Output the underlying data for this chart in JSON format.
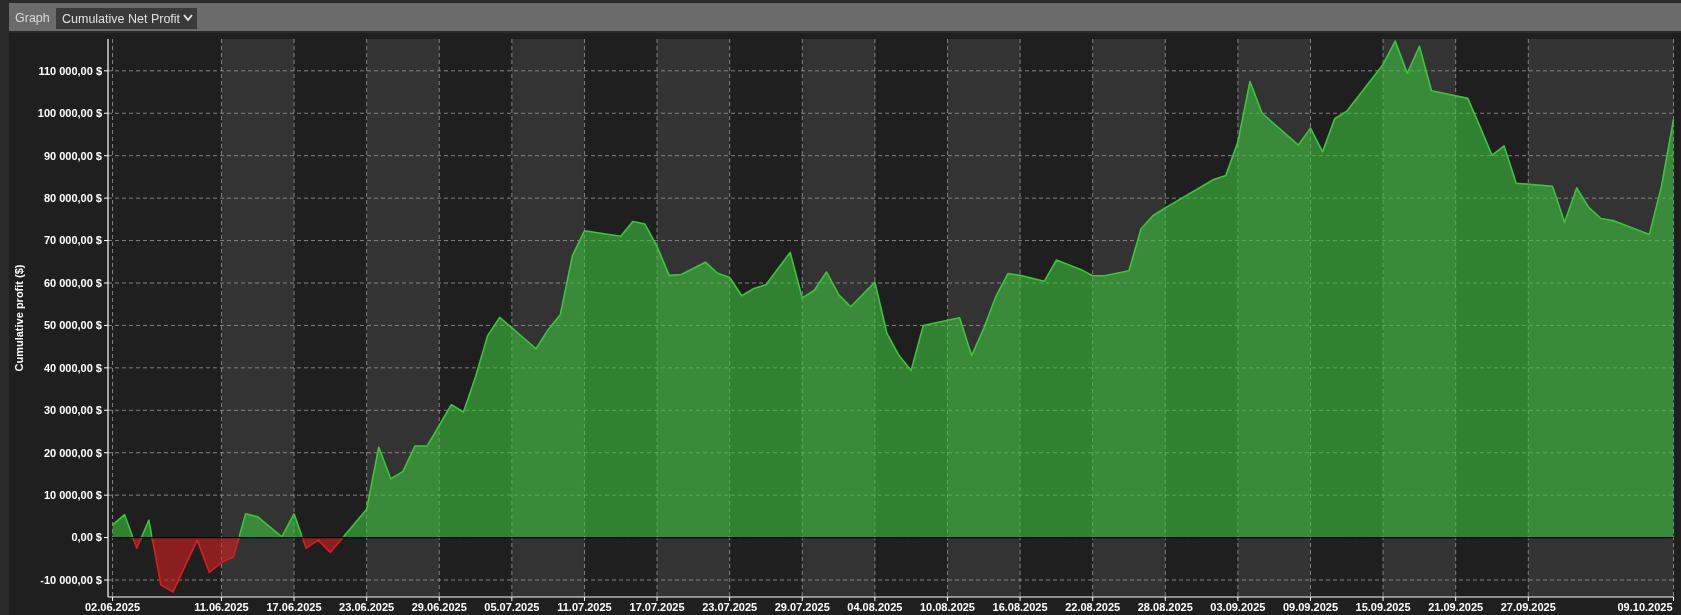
{
  "chart_data": {
    "type": "area",
    "title": "Cumulative Net Profit",
    "annotations": [
      "Graph"
    ],
    "ylabel": "Cumulative profit ($)",
    "x": [
      "2025-06-02",
      "2025-06-03",
      "2025-06-04",
      "2025-06-05",
      "2025-06-06",
      "2025-06-07",
      "2025-06-09",
      "2025-06-10",
      "2025-06-11",
      "2025-06-12",
      "2025-06-13",
      "2025-06-14",
      "2025-06-16",
      "2025-06-17",
      "2025-06-18",
      "2025-06-19",
      "2025-06-20",
      "2025-06-23",
      "2025-06-24",
      "2025-06-25",
      "2025-06-26",
      "2025-06-27",
      "2025-06-28",
      "2025-06-30",
      "2025-07-01",
      "2025-07-02",
      "2025-07-03",
      "2025-07-04",
      "2025-07-07",
      "2025-07-08",
      "2025-07-09",
      "2025-07-10",
      "2025-07-11",
      "2025-07-14",
      "2025-07-15",
      "2025-07-16",
      "2025-07-17",
      "2025-07-18",
      "2025-07-19",
      "2025-07-21",
      "2025-07-22",
      "2025-07-23",
      "2025-07-24",
      "2025-07-25",
      "2025-07-26",
      "2025-07-28",
      "2025-07-29",
      "2025-07-30",
      "2025-07-31",
      "2025-08-01",
      "2025-08-02",
      "2025-08-04",
      "2025-08-05",
      "2025-08-06",
      "2025-08-07",
      "2025-08-08",
      "2025-08-11",
      "2025-08-12",
      "2025-08-13",
      "2025-08-14",
      "2025-08-15",
      "2025-08-16",
      "2025-08-18",
      "2025-08-19",
      "2025-08-21",
      "2025-08-22",
      "2025-08-23",
      "2025-08-25",
      "2025-08-26",
      "2025-08-27",
      "2025-08-28",
      "2025-09-01",
      "2025-09-02",
      "2025-09-03",
      "2025-09-04",
      "2025-09-05",
      "2025-09-08",
      "2025-09-09",
      "2025-09-10",
      "2025-09-11",
      "2025-09-12",
      "2025-09-15",
      "2025-09-16",
      "2025-09-17",
      "2025-09-18",
      "2025-09-19",
      "2025-09-22",
      "2025-09-23",
      "2025-09-24",
      "2025-09-25",
      "2025-09-26",
      "2025-09-29",
      "2025-09-30",
      "2025-10-01",
      "2025-10-02",
      "2025-10-03",
      "2025-10-04",
      "2025-10-07",
      "2025-10-08",
      "2025-10-09"
    ],
    "series": [
      {
        "colors": [
          "#3cc43c",
          "#3cc43c",
          "#d42020",
          "#3cc43c",
          "#d42020",
          "#d42020",
          "#d42020",
          "#d42020",
          "#d42020",
          "#d42020",
          "#3cc43c",
          "#3cc43c",
          "#3cc43c",
          "#3cc43c",
          "#d42020",
          "#d42020",
          "#d42020",
          "#3cc43c",
          "#3cc43c",
          "#3cc43c",
          "#3cc43c",
          "#3cc43c",
          "#3cc43c",
          "#3cc43c",
          "#3cc43c",
          "#3cc43c",
          "#3cc43c",
          "#3cc43c",
          "#3cc43c",
          "#3cc43c",
          "#3cc43c",
          "#3cc43c",
          "#3cc43c",
          "#3cc43c",
          "#3cc43c",
          "#3cc43c",
          "#3cc43c",
          "#3cc43c",
          "#3cc43c",
          "#3cc43c",
          "#3cc43c",
          "#3cc43c",
          "#3cc43c",
          "#3cc43c",
          "#3cc43c",
          "#3cc43c",
          "#3cc43c",
          "#3cc43c",
          "#3cc43c",
          "#3cc43c",
          "#3cc43c",
          "#3cc43c",
          "#3cc43c",
          "#3cc43c",
          "#3cc43c",
          "#3cc43c",
          "#3cc43c",
          "#3cc43c",
          "#3cc43c",
          "#3cc43c",
          "#3cc43c",
          "#3cc43c",
          "#3cc43c",
          "#3cc43c",
          "#3cc43c",
          "#3cc43c",
          "#3cc43c",
          "#3cc43c",
          "#3cc43c",
          "#3cc43c",
          "#3cc43c",
          "#3cc43c",
          "#3cc43c",
          "#3cc43c",
          "#3cc43c",
          "#3cc43c",
          "#3cc43c",
          "#3cc43c",
          "#3cc43c",
          "#3cc43c",
          "#3cc43c",
          "#3cc43c",
          "#3cc43c",
          "#3cc43c",
          "#3cc43c",
          "#3cc43c",
          "#3cc43c",
          "#3cc43c",
          "#3cc43c",
          "#3cc43c",
          "#3cc43c",
          "#3cc43c",
          "#3cc43c",
          "#3cc43c",
          "#3cc43c",
          "#3cc43c",
          "#3cc43c",
          "#3cc43c",
          "#3cc43c",
          "#3cc43c"
        ],
        "values": [
          3000,
          5400,
          -2500,
          4100,
          -11200,
          -12800,
          -600,
          -8200,
          -5900,
          -4500,
          5600,
          4900,
          200,
          5600,
          -2500,
          -600,
          -3500,
          6700,
          21300,
          13800,
          15600,
          21600,
          21600,
          31300,
          29600,
          37900,
          47600,
          51900,
          44500,
          49000,
          52500,
          66400,
          72300,
          71000,
          74500,
          73900,
          68600,
          61800,
          62000,
          64900,
          62300,
          61300,
          57000,
          58700,
          59600,
          67200,
          56500,
          58300,
          62600,
          57300,
          54400,
          60200,
          48100,
          42900,
          39400,
          50000,
          51800,
          42900,
          49300,
          56800,
          62200,
          61800,
          60400,
          65400,
          63200,
          61700,
          61700,
          62900,
          72800,
          75900,
          77700,
          84400,
          85300,
          93200,
          107500,
          100000,
          92500,
          96500,
          90900,
          98700,
          100500,
          111500,
          117000,
          109400,
          115800,
          105300,
          103500,
          96900,
          90100,
          92300,
          83500,
          82800,
          74300,
          82400,
          77800,
          75200,
          74700,
          71400,
          82700,
          98500
        ]
      }
    ],
    "xlim": [
      "2025-06-01T15:00",
      "2025-10-09T00:00"
    ],
    "xticks": [
      {
        "value": "2025-06-02",
        "label": "02.06.2025"
      },
      {
        "value": "2025-06-11",
        "label": "11.06.2025"
      },
      {
        "value": "2025-06-17",
        "label": "17.06.2025"
      },
      {
        "value": "2025-06-23",
        "label": "23.06.2025"
      },
      {
        "value": "2025-06-29",
        "label": "29.06.2025"
      },
      {
        "value": "2025-07-05",
        "label": "05.07.2025"
      },
      {
        "value": "2025-07-11",
        "label": "11.07.2025"
      },
      {
        "value": "2025-07-17",
        "label": "17.07.2025"
      },
      {
        "value": "2025-07-23",
        "label": "23.07.2025"
      },
      {
        "value": "2025-07-29",
        "label": "29.07.2025"
      },
      {
        "value": "2025-08-04",
        "label": "04.08.2025"
      },
      {
        "value": "2025-08-10",
        "label": "10.08.2025"
      },
      {
        "value": "2025-08-16",
        "label": "16.08.2025"
      },
      {
        "value": "2025-08-22",
        "label": "22.08.2025"
      },
      {
        "value": "2025-08-28",
        "label": "28.08.2025"
      },
      {
        "value": "2025-09-03",
        "label": "03.09.2025"
      },
      {
        "value": "2025-09-09",
        "label": "09.09.2025"
      },
      {
        "value": "2025-09-15",
        "label": "15.09.2025"
      },
      {
        "value": "2025-09-21",
        "label": "21.09.2025"
      },
      {
        "value": "2025-09-27",
        "label": "27.09.2025"
      },
      {
        "value": "2025-10-09",
        "label": "09.10.2025"
      }
    ],
    "ylim": [
      -14000,
      117500
    ],
    "yticks": [
      {
        "value": -10000,
        "label": "-10 000,00 $"
      },
      {
        "value": 0,
        "label": "0,00 $"
      },
      {
        "value": 10000,
        "label": "10 000,00 $"
      },
      {
        "value": 20000,
        "label": "20 000,00 $"
      },
      {
        "value": 30000,
        "label": "30 000,00 $"
      },
      {
        "value": 40000,
        "label": "40 000,00 $"
      },
      {
        "value": 50000,
        "label": "50 000,00 $"
      },
      {
        "value": 60000,
        "label": "60 000,00 $"
      },
      {
        "value": 70000,
        "label": "70 000,00 $"
      },
      {
        "value": 80000,
        "label": "80 000,00 $"
      },
      {
        "value": 90000,
        "label": "90 000,00 $"
      },
      {
        "value": 100000,
        "label": "100 000,00 $"
      },
      {
        "value": 110000,
        "label": "110 000,00 $"
      }
    ],
    "grid": true
  }
}
